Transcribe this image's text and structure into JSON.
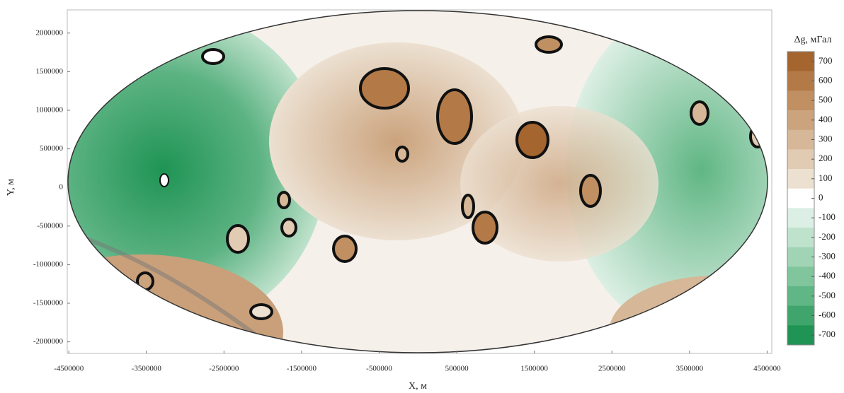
{
  "chart_data": {
    "type": "contour-map",
    "x_label": "X, м",
    "y_label": "Y, м",
    "xlim": [
      -4520000,
      4560000
    ],
    "ylim": [
      -2150000,
      2300000
    ],
    "xticks": [
      -4500000,
      -3500000,
      -2500000,
      -1500000,
      -500000,
      500000,
      1500000,
      2500000,
      3500000,
      4500000
    ],
    "yticks": [
      2000000,
      1500000,
      1000000,
      500000,
      0,
      -500000,
      -1000000,
      -1500000,
      -2000000
    ],
    "colorbar": {
      "title": "Δg, мГал",
      "lim": [
        -750,
        750
      ],
      "ticks": [
        700,
        600,
        500,
        400,
        300,
        200,
        100,
        0,
        -100,
        -200,
        -300,
        -400,
        -500,
        -600,
        -700
      ],
      "colors": [
        "#a5652f",
        "#b37a48",
        "#c08f62",
        "#cba37d",
        "#d6b797",
        "#e1cbb2",
        "#ece0d1",
        "#ffffff",
        "#dcefe4",
        "#bfe2cc",
        "#a0d4b4",
        "#80c59c",
        "#60b684",
        "#40a56c",
        "#1f9454"
      ]
    }
  }
}
